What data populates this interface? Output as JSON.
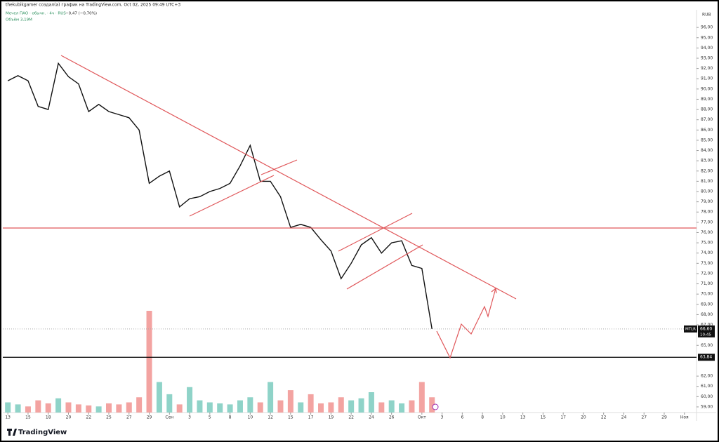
{
  "chart_data": {
    "type": "line",
    "header": "thekubikgamer создал(а) график на TradingView.com, Oct 02, 2025 09:49 UTC+3",
    "symbol_line": "Мечел ПАО · обычн. · 4ч · RUS",
    "change": "−0,47 (−0,70%)",
    "volume_label": "Объём  3,19М",
    "currency": "RUB",
    "ticker": "MTLR",
    "last_price": {
      "value": 66.6,
      "label": "66,60"
    },
    "last_time": "10:45",
    "level": {
      "value": 63.84,
      "label": "63,84"
    },
    "brand": "TradingView",
    "color": "#111111",
    "x": [
      0,
      1,
      2,
      3,
      4,
      5,
      6,
      7,
      8,
      9,
      10,
      11,
      12,
      13,
      14,
      15,
      16,
      17,
      18,
      19,
      20,
      21,
      22,
      23,
      24,
      25,
      26,
      27,
      28,
      29,
      30,
      31,
      32,
      33,
      34,
      35,
      36,
      37,
      38,
      39,
      40,
      41,
      42
    ],
    "values": [
      90.8,
      91.3,
      90.8,
      88.3,
      88.0,
      92.5,
      91.2,
      90.5,
      87.8,
      88.5,
      87.8,
      87.5,
      87.2,
      86.0,
      80.8,
      81.5,
      82.0,
      78.5,
      79.3,
      79.5,
      80.0,
      80.3,
      80.8,
      82.5,
      84.5,
      81.0,
      81.0,
      79.5,
      76.5,
      76.8,
      76.5,
      75.3,
      74.2,
      71.5,
      73.0,
      74.8,
      75.5,
      74.0,
      75.0,
      75.2,
      72.8,
      72.5,
      66.6
    ],
    "volume": [
      10,
      8,
      6,
      12,
      9,
      14,
      10,
      8,
      7,
      6,
      9,
      8,
      10,
      15,
      100,
      30,
      18,
      8,
      25,
      12,
      10,
      9,
      8,
      12,
      15,
      10,
      30,
      12,
      22,
      10,
      18,
      9,
      10,
      15,
      12,
      14,
      20,
      10,
      12,
      9,
      12,
      30,
      15
    ],
    "volume_colors": {
      "up": "#8fd3c8",
      "down": "#f3a3a1"
    },
    "vlim": [
      0,
      100
    ],
    "xlim": [
      -0.5,
      68.2
    ],
    "ylim": [
      58.45,
      97.72
    ],
    "yticks": [
      {
        "value": 59,
        "label": "59,00"
      },
      {
        "value": 60,
        "label": "60,00"
      },
      {
        "value": 61,
        "label": "61,00"
      },
      {
        "value": 62,
        "label": "62,00"
      },
      {
        "value": 65,
        "label": "65,00"
      },
      {
        "value": 67,
        "label": "67,00"
      },
      {
        "value": 68,
        "label": "68,00"
      },
      {
        "value": 69,
        "label": "69,00"
      },
      {
        "value": 70,
        "label": "70,00"
      },
      {
        "value": 71,
        "label": "71,00"
      },
      {
        "value": 72,
        "label": "72,00"
      },
      {
        "value": 73,
        "label": "73,00"
      },
      {
        "value": 74,
        "label": "74,00"
      },
      {
        "value": 75,
        "label": "75,00"
      },
      {
        "value": 76,
        "label": "76,00"
      },
      {
        "value": 77,
        "label": "77,00"
      },
      {
        "value": 78,
        "label": "78,00"
      },
      {
        "value": 79,
        "label": "79,00"
      },
      {
        "value": 80,
        "label": "80,00"
      },
      {
        "value": 81,
        "label": "81,00"
      },
      {
        "value": 82,
        "label": "82,00"
      },
      {
        "value": 83,
        "label": "83,00"
      },
      {
        "value": 84,
        "label": "84,00"
      },
      {
        "value": 85,
        "label": "85,00"
      },
      {
        "value": 86,
        "label": "86,00"
      },
      {
        "value": 87,
        "label": "87,00"
      },
      {
        "value": 88,
        "label": "88,00"
      },
      {
        "value": 89,
        "label": "89,00"
      },
      {
        "value": 90,
        "label": "90,00"
      },
      {
        "value": 91,
        "label": "91,00"
      },
      {
        "value": 92,
        "label": "92,00"
      },
      {
        "value": 93,
        "label": "93,00"
      },
      {
        "value": 94,
        "label": "94,00"
      },
      {
        "value": 95,
        "label": "95,00"
      },
      {
        "value": 96,
        "label": "96,00"
      }
    ],
    "xticks": [
      {
        "value": 0,
        "label": "13"
      },
      {
        "value": 2,
        "label": "15"
      },
      {
        "value": 4,
        "label": "18"
      },
      {
        "value": 6,
        "label": "20"
      },
      {
        "value": 8,
        "label": "22"
      },
      {
        "value": 10,
        "label": "25"
      },
      {
        "value": 12,
        "label": "27"
      },
      {
        "value": 14,
        "label": "29"
      },
      {
        "value": 16,
        "label": "Сен"
      },
      {
        "value": 18,
        "label": "3"
      },
      {
        "value": 20,
        "label": "5"
      },
      {
        "value": 22,
        "label": "8"
      },
      {
        "value": 24,
        "label": "10"
      },
      {
        "value": 26,
        "label": "12"
      },
      {
        "value": 28,
        "label": "15"
      },
      {
        "value": 30,
        "label": "17"
      },
      {
        "value": 32,
        "label": "19"
      },
      {
        "value": 34,
        "label": "22"
      },
      {
        "value": 36,
        "label": "24"
      },
      {
        "value": 38,
        "label": "26"
      },
      {
        "value": 41,
        "label": "Окт"
      },
      {
        "value": 43,
        "label": "3"
      },
      {
        "value": 45,
        "label": "6"
      },
      {
        "value": 47,
        "label": "8"
      },
      {
        "value": 49,
        "label": "10"
      },
      {
        "value": 51,
        "label": "13"
      },
      {
        "value": 53,
        "label": "15"
      },
      {
        "value": 55,
        "label": "17"
      },
      {
        "value": 57,
        "label": "20"
      },
      {
        "value": 59,
        "label": "22"
      },
      {
        "value": 61,
        "label": "24"
      },
      {
        "value": 63,
        "label": "27"
      },
      {
        "value": 65,
        "label": "29"
      },
      {
        "value": 67,
        "label": "Ноя"
      }
    ]
  }
}
